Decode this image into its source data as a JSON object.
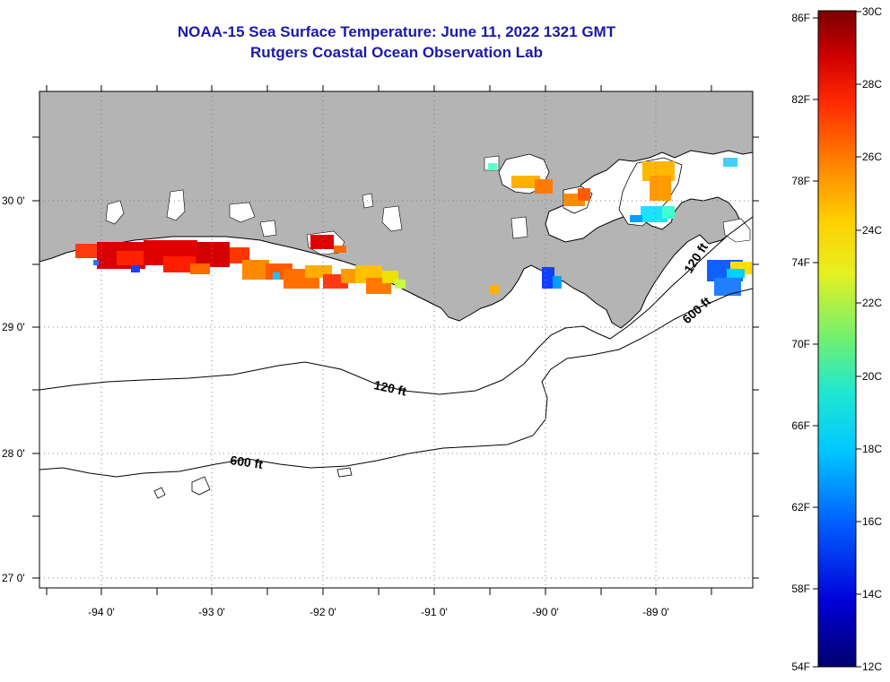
{
  "title": {
    "line1": "NOAA-15 Sea Surface Temperature:  June 11, 2022 1321 GMT",
    "line2": "Rutgers Coastal Ocean Observation Lab"
  },
  "map": {
    "lat_labels": [
      "30 0'",
      "29 0'",
      "28 0'",
      "27 0'"
    ],
    "lon_labels": [
      "-94 0'",
      "-93 0'",
      "-92 0'",
      "-91 0'",
      "-90 0'",
      "-89 0'"
    ],
    "contour_labels": [
      "120 ft",
      "600 ft",
      "120 ft",
      "600 ft"
    ],
    "colors": {
      "land": "#b4b4b4",
      "ocean": "#ffffff",
      "title": "#1a1aa8"
    }
  },
  "colorbar": {
    "fahrenheit_labels": [
      "86F",
      "82F",
      "78F",
      "74F",
      "70F",
      "66F",
      "62F",
      "58F",
      "54F"
    ],
    "celsius_labels": [
      "30C",
      "28C",
      "26C",
      "24C",
      "22C",
      "20C",
      "18C",
      "16C",
      "14C",
      "12C"
    ],
    "range_c": [
      12,
      30
    ]
  }
}
